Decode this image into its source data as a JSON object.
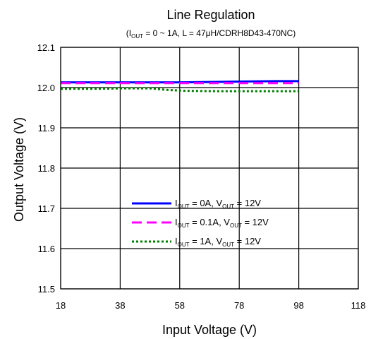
{
  "chart_data": {
    "type": "line",
    "title": "Line Regulation",
    "subtitle": {
      "prefix": "(I",
      "sub": "OUT",
      "suffix": " = 0 ~ 1A, L = 47μH/CDRH8D43-470NC)"
    },
    "xlabel": "Input Voltage (V)",
    "ylabel": "Output Voltage (V)",
    "xlim": [
      18,
      118
    ],
    "ylim": [
      11.5,
      12.1
    ],
    "xticks": [
      18,
      38,
      58,
      78,
      98,
      118
    ],
    "yticks": [
      11.5,
      11.6,
      11.7,
      11.8,
      11.9,
      12.0,
      12.1
    ],
    "xtick_labels": [
      "18",
      "38",
      "58",
      "78",
      "98",
      "118"
    ],
    "ytick_labels": [
      "11.5",
      "11.6",
      "11.7",
      "11.8",
      "11.9",
      "12.0",
      "12.1"
    ],
    "grid": true,
    "legend_position": "center",
    "series": [
      {
        "name_parts": [
          "I",
          "OUT",
          " = 0A, V",
          "OUT",
          " = 12V"
        ],
        "color": "#0000ff",
        "dash": "solid",
        "x": [
          18,
          30,
          40,
          50,
          58,
          70,
          80,
          90,
          98
        ],
        "y": [
          12.013,
          12.013,
          12.013,
          12.013,
          12.013,
          12.014,
          12.015,
          12.016,
          12.016
        ]
      },
      {
        "name_parts": [
          "I",
          "OUT",
          " = 0.1A, V",
          "OUT",
          " = 12V"
        ],
        "color": "#ff00ff",
        "dash": "dashed",
        "x": [
          18,
          30,
          40,
          50,
          58,
          70,
          80,
          90,
          98
        ],
        "y": [
          12.011,
          12.011,
          12.011,
          12.011,
          12.011,
          12.011,
          12.011,
          12.011,
          12.011
        ]
      },
      {
        "name_parts": [
          "I",
          "OUT",
          " = 1A, V",
          "OUT",
          " = 12V"
        ],
        "color": "#008000",
        "dash": "dotted",
        "x": [
          18,
          30,
          40,
          48,
          54,
          60,
          70,
          80,
          90,
          98
        ],
        "y": [
          11.997,
          11.997,
          11.998,
          11.998,
          11.994,
          11.992,
          11.991,
          11.991,
          11.991,
          11.991
        ]
      }
    ]
  }
}
